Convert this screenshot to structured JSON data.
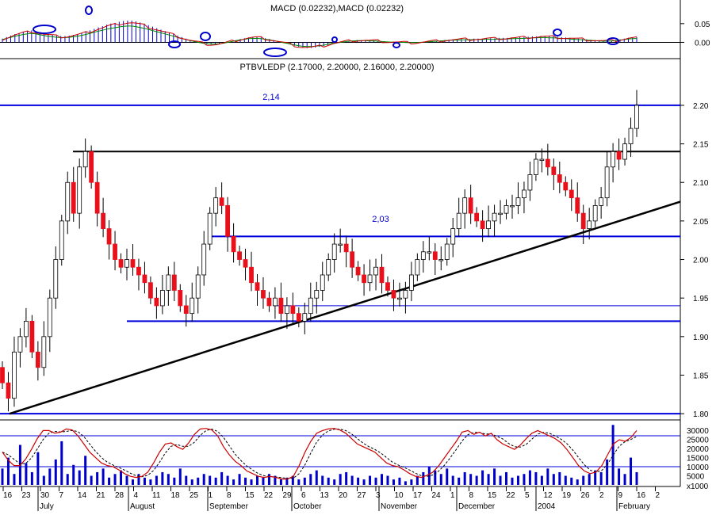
{
  "chart_data": [
    {
      "type": "bar",
      "panel": "macd",
      "title": "MACD (0.02232),MACD (0.02232)",
      "y_ticks": [
        "0.05",
        "0.00"
      ],
      "ylim": [
        -0.035,
        0.075
      ],
      "histogram": [
        0.01,
        0.014,
        0.018,
        0.022,
        0.025,
        0.028,
        0.03,
        0.032,
        0.03,
        0.027,
        0.024,
        0.022,
        0.02,
        0.018,
        0.017,
        0.017,
        0.018,
        0.02,
        0.022,
        0.025,
        0.028,
        0.032,
        0.036,
        0.04,
        0.043,
        0.047,
        0.05,
        0.052,
        0.055,
        0.057,
        0.058,
        0.058,
        0.056,
        0.053,
        0.05,
        0.046,
        0.042,
        0.038,
        0.034,
        0.03,
        0.026,
        0.022,
        0.018,
        0.014,
        0.01,
        0.006,
        0.003,
        0.0,
        -0.003,
        -0.005,
        -0.006,
        -0.006,
        -0.005,
        -0.003,
        0.0,
        0.003,
        0.006,
        0.009,
        0.011,
        0.013,
        0.014,
        0.014,
        0.013,
        0.011,
        0.009,
        0.006,
        0.003,
        0.0,
        -0.003,
        -0.006,
        -0.009,
        -0.012,
        -0.014,
        -0.015,
        -0.015,
        -0.014,
        -0.012,
        -0.01,
        -0.007,
        -0.004,
        -0.002,
        0.0,
        0.002,
        0.004,
        0.005,
        0.006,
        0.006,
        0.006,
        0.005,
        0.005,
        0.004,
        0.003,
        0.002,
        0.001,
        0.001,
        0.0,
        0.0,
        -0.001,
        -0.001,
        -0.001,
        0.0,
        0.001,
        0.002,
        0.003,
        0.004,
        0.005,
        0.006,
        0.007,
        0.008,
        0.008,
        0.009,
        0.009,
        0.009,
        0.01,
        0.01,
        0.01,
        0.011,
        0.011,
        0.011,
        0.012,
        0.012,
        0.012,
        0.013,
        0.013,
        0.014,
        0.014,
        0.015,
        0.016,
        0.016,
        0.017,
        0.017,
        0.016,
        0.016,
        0.015,
        0.014,
        0.013,
        0.012,
        0.011,
        0.01,
        0.009,
        0.008,
        0.007,
        0.006,
        0.005,
        0.004,
        0.004,
        0.005,
        0.006,
        0.008,
        0.01,
        0.012,
        0.013,
        0.014
      ]
    },
    {
      "type": "line",
      "panel": "price",
      "title": "PTBVLEDP (2.17000, 2.20000, 2.16000, 2.20000)",
      "y_ticks": [
        "2.20",
        "2.15",
        "2.10",
        "2.05",
        "2.00",
        "1.95",
        "1.90",
        "1.85",
        "1.80"
      ],
      "ylim": [
        1.795,
        2.24
      ],
      "levels": [
        2.2,
        2.14,
        2.03,
        1.94,
        1.92,
        1.8
      ],
      "annotations": [
        "2,14",
        "2,03"
      ],
      "trendline_start": 1.8,
      "trendline_end": 2.075,
      "closes": [
        1.84,
        1.82,
        1.88,
        1.9,
        1.92,
        1.88,
        1.86,
        1.9,
        1.95,
        2.0,
        2.05,
        2.1,
        2.06,
        2.12,
        2.14,
        2.1,
        2.06,
        2.04,
        2.02,
        2.0,
        1.99,
        2.0,
        1.99,
        1.98,
        1.97,
        1.95,
        1.94,
        1.96,
        1.98,
        1.96,
        1.94,
        1.93,
        1.95,
        1.98,
        2.02,
        2.06,
        2.08,
        2.07,
        2.03,
        2.01,
        2.0,
        1.99,
        1.97,
        1.96,
        1.95,
        1.94,
        1.95,
        1.93,
        1.94,
        1.93,
        1.92,
        1.93,
        1.95,
        1.96,
        1.98,
        2.0,
        2.02,
        2.02,
        2.01,
        1.99,
        1.98,
        1.97,
        1.98,
        1.99,
        1.97,
        1.96,
        1.95,
        1.95,
        1.96,
        1.98,
        2.0,
        2.01,
        2.01,
        2.0,
        2.0,
        2.02,
        2.04,
        2.06,
        2.08,
        2.06,
        2.05,
        2.04,
        2.05,
        2.06,
        2.06,
        2.07,
        2.07,
        2.08,
        2.09,
        2.11,
        2.13,
        2.13,
        2.12,
        2.11,
        2.1,
        2.09,
        2.08,
        2.06,
        2.04,
        2.05,
        2.07,
        2.08,
        2.12,
        2.14,
        2.13,
        2.15,
        2.17,
        2.2
      ]
    },
    {
      "type": "bar",
      "panel": "volume",
      "y_ticks": [
        "30000",
        "25000",
        "20000",
        "15000",
        "10000",
        "5000",
        "x1000"
      ],
      "ylim": [
        0,
        34000
      ],
      "levels": [
        27000,
        10000
      ],
      "volumes": [
        9000,
        15000,
        6000,
        22000,
        12000,
        7000,
        18000,
        5000,
        9000,
        14000,
        24000,
        6000,
        11000,
        8000,
        16000,
        5000,
        7000,
        9000,
        4000,
        6000,
        8000,
        5000,
        3000,
        6000,
        4000,
        3000,
        5000,
        7000,
        6000,
        4000,
        9000,
        5000,
        3000,
        4000,
        6000,
        5000,
        4000,
        7000,
        5000,
        3000,
        6000,
        4000,
        3000,
        5000,
        4000,
        6000,
        5000,
        3000,
        4000,
        5000,
        3000,
        4000,
        6000,
        8000,
        5000,
        4000,
        3000,
        6000,
        7000,
        5000,
        4000,
        3000,
        5000,
        4000,
        6000,
        5000,
        3000,
        4000,
        2000,
        3000,
        5000,
        7000,
        10000,
        8000,
        6000,
        9000,
        5000,
        4000,
        7000,
        6000,
        5000,
        8000,
        6000,
        9000,
        5000,
        7000,
        4000,
        5000,
        6000,
        8000,
        7000,
        5000,
        9000,
        6000,
        7000,
        5000,
        4000,
        3000,
        5000,
        6000,
        8000,
        7000,
        14000,
        33000,
        9000,
        6000,
        15000,
        7000
      ],
      "stoch_k": [
        0.55,
        0.4,
        0.3,
        0.3,
        0.42,
        0.6,
        0.8,
        0.95,
        0.95,
        0.9,
        0.92,
        0.98,
        0.96,
        0.85,
        0.7,
        0.55,
        0.45,
        0.35,
        0.3,
        0.28,
        0.22,
        0.15,
        0.1,
        0.08,
        0.1,
        0.18,
        0.35,
        0.55,
        0.7,
        0.72,
        0.65,
        0.6,
        0.72,
        0.88,
        0.98,
        0.99,
        0.96,
        0.85,
        0.65,
        0.5,
        0.38,
        0.3,
        0.2,
        0.15,
        0.1,
        0.08,
        0.1,
        0.08,
        0.05,
        0.05,
        0.1,
        0.3,
        0.55,
        0.75,
        0.9,
        0.95,
        0.98,
        0.99,
        0.96,
        0.9,
        0.8,
        0.7,
        0.65,
        0.6,
        0.55,
        0.45,
        0.35,
        0.3,
        0.28,
        0.22,
        0.15,
        0.1,
        0.08,
        0.12,
        0.18,
        0.3,
        0.45,
        0.6,
        0.75,
        0.92,
        0.95,
        0.88,
        0.92,
        0.85,
        0.9,
        0.78,
        0.7,
        0.65,
        0.6,
        0.68,
        0.8,
        0.9,
        0.95,
        0.9,
        0.85,
        0.8,
        0.72,
        0.6,
        0.45,
        0.3,
        0.2,
        0.15,
        0.18,
        0.3,
        0.5,
        0.7,
        0.78,
        0.75,
        0.82,
        0.95
      ]
    }
  ],
  "x_axis": {
    "day_ticks": [
      "16",
      "23",
      "30",
      "7",
      "14",
      "21",
      "28",
      "4",
      "11",
      "18",
      "25",
      "1",
      "8",
      "15",
      "22",
      "29",
      "6",
      "13",
      "20",
      "27",
      "3",
      "10",
      "17",
      "24",
      "1",
      "8",
      "15",
      "22",
      "5",
      "12",
      "19",
      "26",
      "2",
      "9",
      "16",
      "2"
    ],
    "month_labels": [
      "July",
      "August",
      "September",
      "October",
      "November",
      "December",
      "2004",
      "February"
    ]
  },
  "colors": {
    "up_candle": "#ffffff",
    "down_candle": "#e8101a",
    "candle_outline": "#000000",
    "level_line": "#0000dd",
    "trendline": "#000000",
    "macd_hist": "#0000cc",
    "macd_fast": "#cc0000",
    "macd_slow": "#008800",
    "stoch_k": "#cc0000",
    "stoch_d": "#000000",
    "volume": "#0000cc"
  }
}
